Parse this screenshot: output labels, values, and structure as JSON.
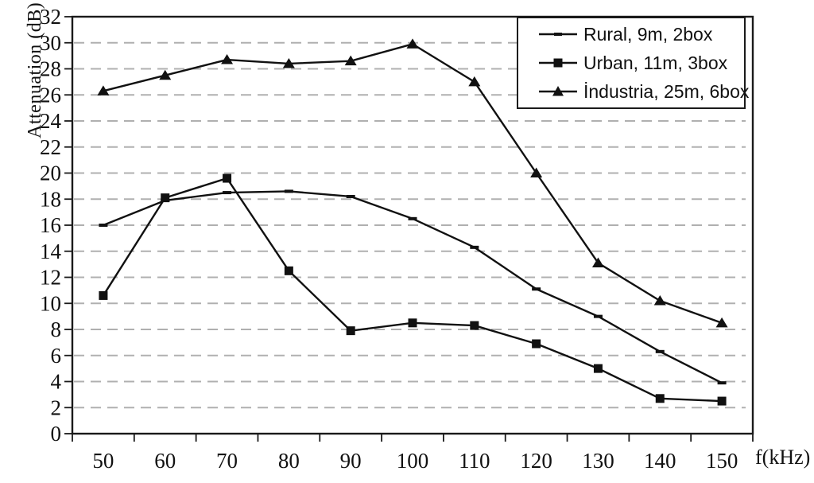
{
  "chart_data": {
    "type": "line",
    "title": "",
    "xlabel": "f(kHz)",
    "ylabel": "Attenuation (dB)",
    "x": [
      50,
      60,
      70,
      80,
      90,
      100,
      110,
      120,
      130,
      140,
      150
    ],
    "xlim": [
      45,
      155
    ],
    "ylim": [
      0,
      32
    ],
    "ytick_step": 2,
    "yticks": [
      0,
      2,
      4,
      6,
      8,
      10,
      12,
      14,
      16,
      18,
      20,
      22,
      24,
      26,
      28,
      30,
      32
    ],
    "grid": "horizontal-dashed",
    "grid_color": "#b0b0b0",
    "axis_color": "#1a1a1a",
    "line_color": "#111111",
    "legend_position": "top-right",
    "series": [
      {
        "name": "Rural, 9m, 2box",
        "marker": "dash",
        "color": "#111111",
        "values": [
          16.0,
          17.9,
          18.5,
          18.6,
          18.2,
          16.5,
          14.3,
          11.1,
          9.0,
          6.3,
          3.9
        ]
      },
      {
        "name": "Urban, 11m, 3box",
        "marker": "square",
        "color": "#111111",
        "values": [
          10.6,
          18.1,
          19.6,
          12.5,
          7.9,
          8.5,
          8.3,
          6.9,
          5.0,
          2.7,
          2.5
        ]
      },
      {
        "name": "İndustria, 25m, 6box",
        "marker": "triangle",
        "color": "#111111",
        "values": [
          26.3,
          27.5,
          28.7,
          28.4,
          28.6,
          29.9,
          27.0,
          20.0,
          13.1,
          10.2,
          8.5
        ]
      }
    ]
  }
}
